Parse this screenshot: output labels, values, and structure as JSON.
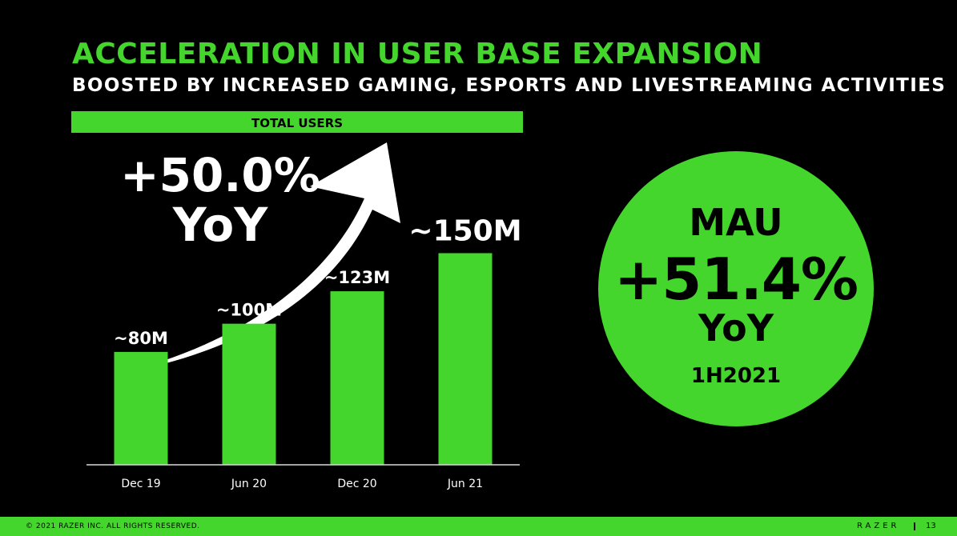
{
  "header": {
    "title": "ACCELERATION IN USER BASE EXPANSION",
    "subtitle": "BOOSTED BY INCREASED GAMING, ESPORTS AND LIVESTREAMING ACTIVITIES"
  },
  "chart_data": {
    "type": "bar",
    "title": "TOTAL USERS",
    "categories": [
      "Dec 19",
      "Jun 20",
      "Dec 20",
      "Jun 21"
    ],
    "values": [
      80,
      100,
      123,
      150
    ],
    "data_labels": [
      "~80M",
      "~100M",
      "~123M",
      "~150M"
    ],
    "xlabel": "",
    "ylabel": "",
    "ylim": [
      0,
      165
    ],
    "grid": false,
    "bar_color": "#44d62c"
  },
  "callout": {
    "value": "+50.0%",
    "label": "YoY",
    "icon": "growth-arrow-icon"
  },
  "mau": {
    "label": "MAU",
    "value": "+51.4%",
    "yoy": "YoY",
    "period": "1H2021"
  },
  "footer": {
    "copyright": "© 2021 RAZER INC. ALL RIGHTS RESERVED.",
    "brand": "RAZER",
    "page": "13"
  },
  "colors": {
    "accent": "#44d62c",
    "background": "#000000",
    "text": "#ffffff"
  }
}
